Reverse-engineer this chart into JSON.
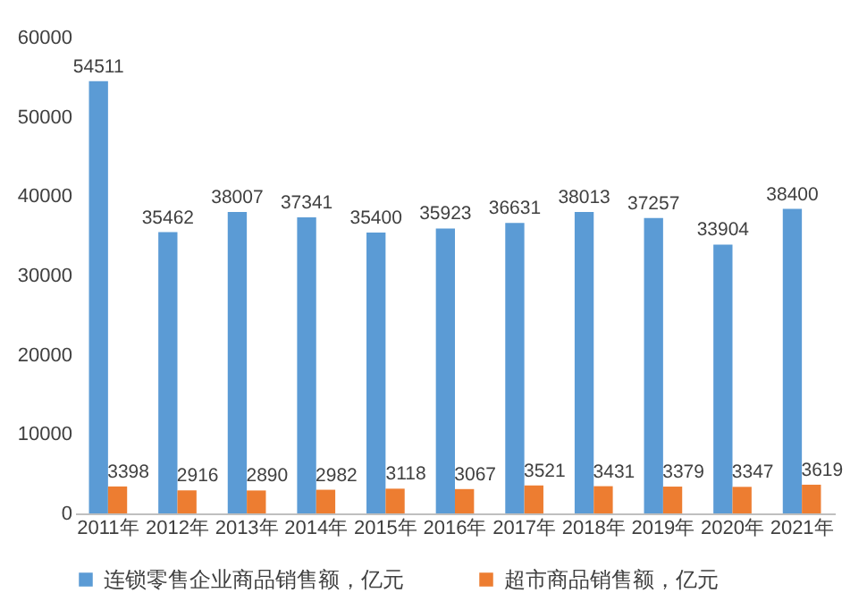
{
  "chart_data": {
    "type": "bar",
    "categories": [
      "2011年",
      "2012年",
      "2013年",
      "2014年",
      "2015年",
      "2016年",
      "2017年",
      "2018年",
      "2019年",
      "2020年",
      "2021年"
    ],
    "series": [
      {
        "name": "连锁零售企业商品销售额，亿元",
        "color": "#5b9bd5",
        "values": [
          54511,
          35462,
          38007,
          37341,
          35400,
          35923,
          36631,
          38013,
          37257,
          33904,
          38400
        ]
      },
      {
        "name": "超市商品销售额，亿元",
        "color": "#ed7d31",
        "values": [
          3398,
          2916,
          2890,
          2982,
          3118,
          3067,
          3521,
          3431,
          3379,
          3347,
          3619
        ]
      }
    ],
    "ylim": [
      0,
      60000
    ],
    "yticks": [
      0,
      10000,
      20000,
      30000,
      40000,
      50000,
      60000
    ],
    "grid": false,
    "legend": "bottom",
    "data_labels": true
  }
}
